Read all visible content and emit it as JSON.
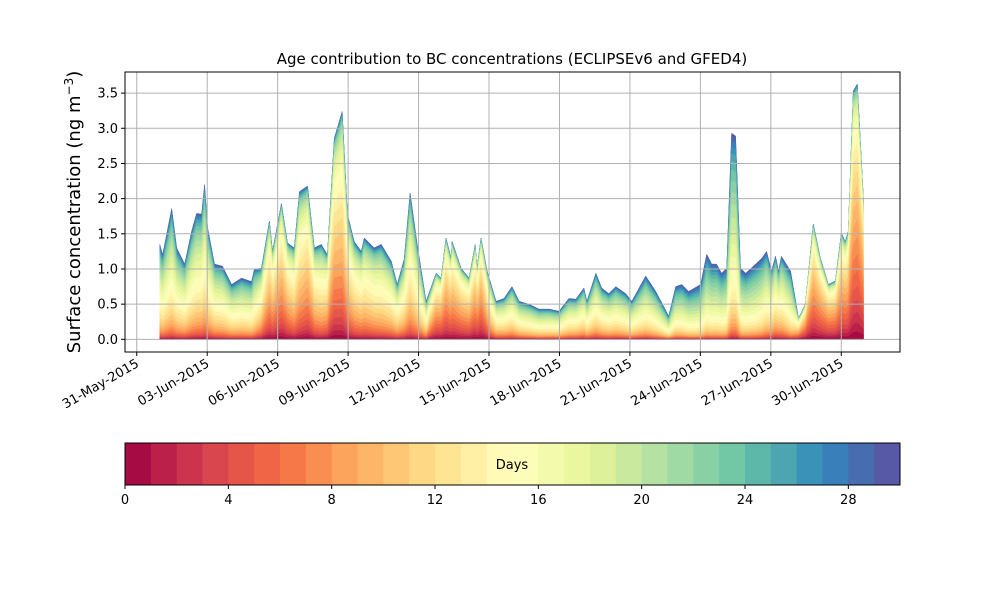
{
  "chart_data": {
    "type": "area",
    "title": "Age contribution to BC concentrations (ECLIPSEv6 and GFED4)",
    "ylabel": "Surface concentration (ng m",
    "ylabel_sup": "−3",
    "ylabel_close": ")",
    "xlabel": "",
    "ylim": [
      -0.18,
      3.8
    ],
    "xlim_days_since_2015_05_31": [
      -0.5,
      32.5
    ],
    "grid": true,
    "x_ticks": [
      {
        "day": 0,
        "label": "31-May-2015"
      },
      {
        "day": 3,
        "label": "03-Jun-2015"
      },
      {
        "day": 6,
        "label": "06-Jun-2015"
      },
      {
        "day": 9,
        "label": "09-Jun-2015"
      },
      {
        "day": 12,
        "label": "12-Jun-2015"
      },
      {
        "day": 15,
        "label": "15-Jun-2015"
      },
      {
        "day": 18,
        "label": "18-Jun-2015"
      },
      {
        "day": 21,
        "label": "21-Jun-2015"
      },
      {
        "day": 24,
        "label": "24-Jun-2015"
      },
      {
        "day": 27,
        "label": "27-Jun-2015"
      },
      {
        "day": 30,
        "label": "30-Jun-2015"
      }
    ],
    "y_ticks": [
      {
        "v": 0.0,
        "label": "0.0"
      },
      {
        "v": 0.5,
        "label": "0.5"
      },
      {
        "v": 1.0,
        "label": "1.0"
      },
      {
        "v": 1.5,
        "label": "1.5"
      },
      {
        "v": 2.0,
        "label": "2.0"
      },
      {
        "v": 2.5,
        "label": "2.5"
      },
      {
        "v": 3.0,
        "label": "3.0"
      },
      {
        "v": 3.5,
        "label": "3.5"
      }
    ],
    "total_series": [
      [
        0.98,
        1.35
      ],
      [
        1.1,
        1.2
      ],
      [
        1.49,
        1.86
      ],
      [
        1.7,
        1.3
      ],
      [
        2.04,
        1.07
      ],
      [
        2.34,
        1.54
      ],
      [
        2.55,
        1.79
      ],
      [
        2.76,
        1.78
      ],
      [
        2.89,
        2.2
      ],
      [
        3.02,
        1.58
      ],
      [
        3.31,
        1.07
      ],
      [
        3.65,
        1.04
      ],
      [
        4.04,
        0.78
      ],
      [
        4.46,
        0.87
      ],
      [
        4.89,
        0.82
      ],
      [
        5.01,
        1.0
      ],
      [
        5.31,
        1.01
      ],
      [
        5.65,
        1.68
      ],
      [
        5.78,
        1.25
      ],
      [
        6.16,
        1.93
      ],
      [
        6.42,
        1.37
      ],
      [
        6.71,
        1.3
      ],
      [
        6.93,
        2.1
      ],
      [
        7.27,
        2.18
      ],
      [
        7.56,
        1.3
      ],
      [
        7.86,
        1.35
      ],
      [
        8.12,
        1.2
      ],
      [
        8.41,
        2.86
      ],
      [
        8.75,
        3.24
      ],
      [
        8.97,
        1.78
      ],
      [
        9.26,
        1.39
      ],
      [
        9.56,
        1.25
      ],
      [
        9.69,
        1.44
      ],
      [
        10.11,
        1.3
      ],
      [
        10.41,
        1.35
      ],
      [
        10.84,
        1.11
      ],
      [
        11.09,
        0.78
      ],
      [
        11.39,
        1.14
      ],
      [
        11.64,
        2.08
      ],
      [
        11.94,
        1.35
      ],
      [
        12.32,
        0.54
      ],
      [
        12.75,
        0.94
      ],
      [
        12.96,
        0.87
      ],
      [
        13.17,
        1.44
      ],
      [
        13.39,
        1.15
      ],
      [
        13.43,
        1.39
      ],
      [
        13.81,
        1.01
      ],
      [
        14.15,
        0.87
      ],
      [
        14.41,
        1.35
      ],
      [
        14.49,
        1.01
      ],
      [
        14.66,
        1.44
      ],
      [
        14.92,
        0.97
      ],
      [
        15.09,
        0.78
      ],
      [
        15.3,
        0.54
      ],
      [
        15.64,
        0.58
      ],
      [
        15.98,
        0.75
      ],
      [
        16.28,
        0.54
      ],
      [
        16.7,
        0.5
      ],
      [
        17.13,
        0.43
      ],
      [
        17.55,
        0.43
      ],
      [
        17.98,
        0.4
      ],
      [
        18.4,
        0.58
      ],
      [
        18.7,
        0.57
      ],
      [
        19.04,
        0.73
      ],
      [
        19.17,
        0.54
      ],
      [
        19.55,
        0.94
      ],
      [
        19.8,
        0.73
      ],
      [
        20.1,
        0.65
      ],
      [
        20.4,
        0.75
      ],
      [
        20.82,
        0.65
      ],
      [
        21.08,
        0.54
      ],
      [
        21.67,
        0.9
      ],
      [
        22.1,
        0.68
      ],
      [
        22.65,
        0.33
      ],
      [
        22.95,
        0.75
      ],
      [
        23.21,
        0.78
      ],
      [
        23.5,
        0.68
      ],
      [
        24.01,
        0.78
      ],
      [
        24.27,
        1.21
      ],
      [
        24.48,
        1.07
      ],
      [
        24.69,
        1.07
      ],
      [
        24.9,
        0.94
      ],
      [
        25.12,
        1.01
      ],
      [
        25.33,
        2.93
      ],
      [
        25.5,
        2.89
      ],
      [
        25.71,
        1.01
      ],
      [
        25.93,
        0.94
      ],
      [
        26.35,
        1.07
      ],
      [
        26.61,
        1.15
      ],
      [
        26.82,
        1.25
      ],
      [
        27.03,
        0.97
      ],
      [
        27.2,
        1.18
      ],
      [
        27.33,
        0.97
      ],
      [
        27.45,
        1.18
      ],
      [
        27.84,
        0.97
      ],
      [
        28.18,
        0.3
      ],
      [
        28.47,
        0.5
      ],
      [
        28.81,
        1.64
      ],
      [
        29.11,
        1.15
      ],
      [
        29.45,
        0.78
      ],
      [
        29.75,
        0.83
      ],
      [
        30.0,
        1.51
      ],
      [
        30.17,
        1.39
      ],
      [
        30.3,
        1.54
      ],
      [
        30.51,
        3.53
      ],
      [
        30.68,
        3.63
      ],
      [
        30.94,
        2.0
      ]
    ],
    "mean_age_days": [
      [
        0.98,
        17
      ],
      [
        3,
        16
      ],
      [
        5,
        17
      ],
      [
        5.6,
        11
      ],
      [
        6.2,
        10
      ],
      [
        6.8,
        13
      ],
      [
        7.3,
        11
      ],
      [
        7.8,
        14
      ],
      [
        8.5,
        10
      ],
      [
        9.2,
        13
      ],
      [
        10.5,
        15
      ],
      [
        11.6,
        15
      ],
      [
        12.3,
        16
      ],
      [
        12.8,
        9
      ],
      [
        13.5,
        10
      ],
      [
        14.3,
        10
      ],
      [
        14.7,
        9
      ],
      [
        15.2,
        15
      ],
      [
        17,
        17
      ],
      [
        19,
        16
      ],
      [
        21,
        17
      ],
      [
        22.5,
        18
      ],
      [
        24,
        20
      ],
      [
        25.4,
        19
      ],
      [
        26.5,
        19
      ],
      [
        27.3,
        15
      ],
      [
        27.8,
        19
      ],
      [
        28.3,
        9
      ],
      [
        28.8,
        9
      ],
      [
        29.5,
        9
      ],
      [
        30.5,
        9
      ],
      [
        30.94,
        8
      ]
    ],
    "colorbar": {
      "label": "Days",
      "range": [
        0,
        30
      ],
      "levels": 30,
      "colormap": [
        "#9e0142",
        "#d53e4f",
        "#f46d43",
        "#fdae61",
        "#fee08b",
        "#ffffbf",
        "#e6f598",
        "#abdda4",
        "#66c2a5",
        "#3288bd",
        "#5e4fa2"
      ],
      "ticks": [
        {
          "v": 0,
          "label": "0"
        },
        {
          "v": 4,
          "label": "4"
        },
        {
          "v": 8,
          "label": "8"
        },
        {
          "v": 12,
          "label": "12"
        },
        {
          "v": 16,
          "label": "16"
        },
        {
          "v": 20,
          "label": "20"
        },
        {
          "v": 24,
          "label": "24"
        },
        {
          "v": 28,
          "label": "28"
        }
      ]
    }
  }
}
